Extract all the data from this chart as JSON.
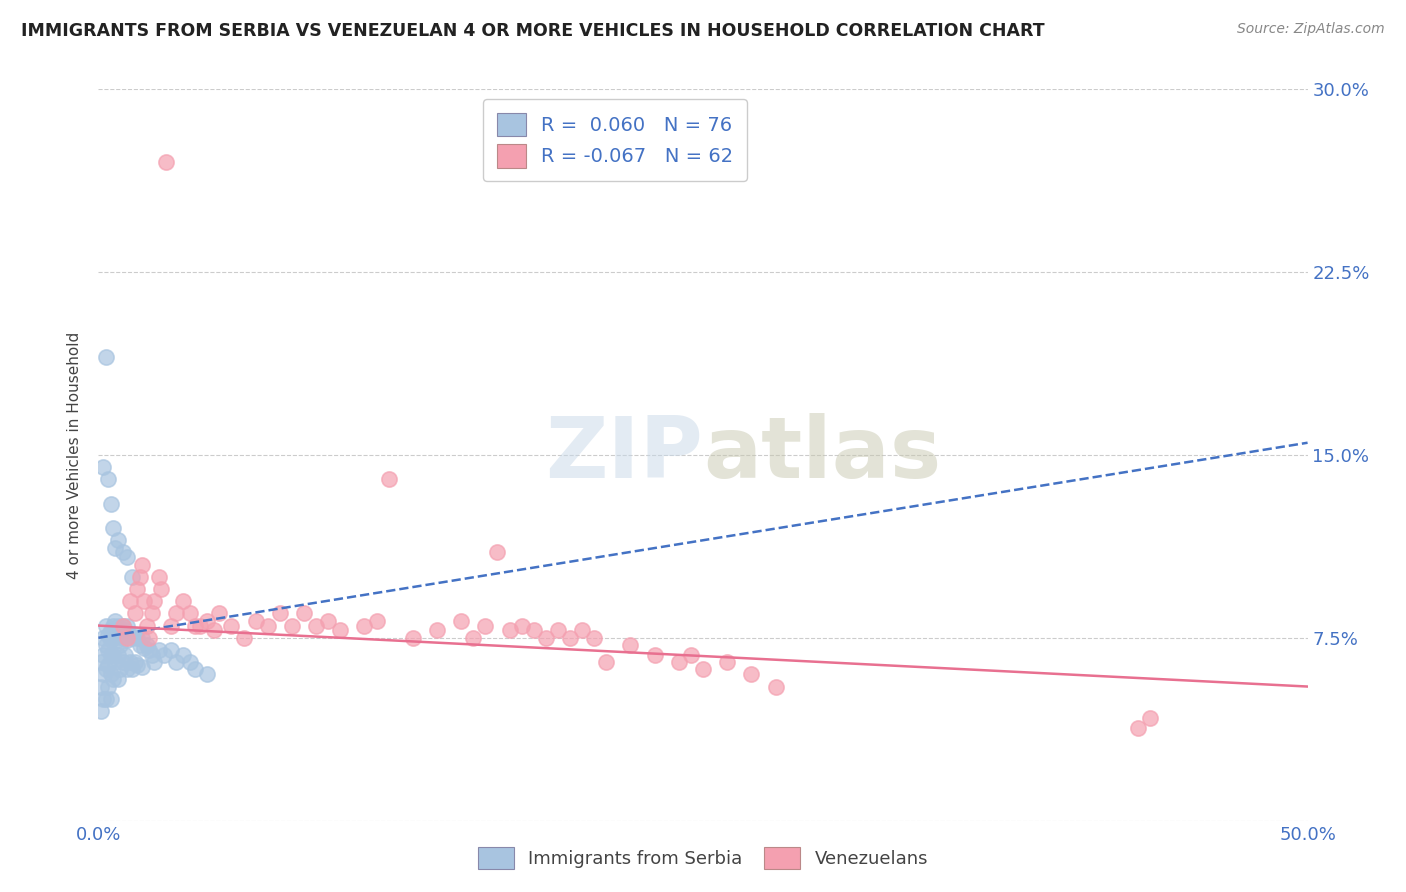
{
  "title": "IMMIGRANTS FROM SERBIA VS VENEZUELAN 4 OR MORE VEHICLES IN HOUSEHOLD CORRELATION CHART",
  "source": "Source: ZipAtlas.com",
  "xlabel_blue": "Immigrants from Serbia",
  "xlabel_pink": "Venezuelans",
  "ylabel": "4 or more Vehicles in Household",
  "xlim": [
    0.0,
    0.5
  ],
  "ylim": [
    0.0,
    0.3
  ],
  "R_blue": 0.06,
  "N_blue": 76,
  "R_pink": -0.067,
  "N_pink": 62,
  "blue_color": "#a8c4e0",
  "pink_color": "#f4a0b0",
  "blue_line_color": "#4472c4",
  "pink_line_color": "#e87090",
  "watermark": "ZIPatlas",
  "blue_trend_x": [
    0.0,
    0.5
  ],
  "blue_trend_y": [
    0.075,
    0.155
  ],
  "pink_trend_x": [
    0.0,
    0.5
  ],
  "pink_trend_y": [
    0.08,
    0.055
  ],
  "blue_scatter_x": [
    0.001,
    0.001,
    0.001,
    0.002,
    0.002,
    0.002,
    0.002,
    0.003,
    0.003,
    0.003,
    0.003,
    0.004,
    0.004,
    0.004,
    0.004,
    0.005,
    0.005,
    0.005,
    0.005,
    0.005,
    0.006,
    0.006,
    0.006,
    0.006,
    0.007,
    0.007,
    0.007,
    0.008,
    0.008,
    0.008,
    0.008,
    0.009,
    0.009,
    0.009,
    0.01,
    0.01,
    0.01,
    0.011,
    0.011,
    0.012,
    0.012,
    0.012,
    0.013,
    0.013,
    0.014,
    0.014,
    0.015,
    0.015,
    0.016,
    0.016,
    0.017,
    0.018,
    0.018,
    0.019,
    0.02,
    0.021,
    0.022,
    0.023,
    0.025,
    0.027,
    0.03,
    0.032,
    0.035,
    0.038,
    0.04,
    0.045,
    0.002,
    0.004,
    0.006,
    0.008,
    0.01,
    0.012,
    0.014,
    0.003,
    0.005,
    0.007
  ],
  "blue_scatter_y": [
    0.065,
    0.055,
    0.045,
    0.075,
    0.068,
    0.06,
    0.05,
    0.08,
    0.072,
    0.062,
    0.05,
    0.076,
    0.07,
    0.064,
    0.055,
    0.078,
    0.074,
    0.068,
    0.06,
    0.05,
    0.08,
    0.075,
    0.068,
    0.058,
    0.082,
    0.076,
    0.065,
    0.08,
    0.074,
    0.068,
    0.058,
    0.078,
    0.072,
    0.062,
    0.08,
    0.075,
    0.065,
    0.078,
    0.068,
    0.08,
    0.074,
    0.062,
    0.076,
    0.065,
    0.075,
    0.062,
    0.076,
    0.065,
    0.075,
    0.064,
    0.072,
    0.075,
    0.063,
    0.071,
    0.072,
    0.07,
    0.068,
    0.065,
    0.07,
    0.068,
    0.07,
    0.065,
    0.068,
    0.065,
    0.062,
    0.06,
    0.145,
    0.14,
    0.12,
    0.115,
    0.11,
    0.108,
    0.1,
    0.19,
    0.13,
    0.112
  ],
  "pink_scatter_x": [
    0.01,
    0.012,
    0.013,
    0.015,
    0.016,
    0.017,
    0.018,
    0.019,
    0.02,
    0.021,
    0.022,
    0.023,
    0.025,
    0.026,
    0.028,
    0.03,
    0.032,
    0.035,
    0.038,
    0.04,
    0.042,
    0.045,
    0.048,
    0.05,
    0.055,
    0.06,
    0.065,
    0.07,
    0.075,
    0.08,
    0.085,
    0.09,
    0.095,
    0.1,
    0.11,
    0.115,
    0.12,
    0.13,
    0.14,
    0.15,
    0.155,
    0.16,
    0.165,
    0.17,
    0.175,
    0.18,
    0.185,
    0.19,
    0.195,
    0.2,
    0.205,
    0.21,
    0.22,
    0.23,
    0.24,
    0.245,
    0.25,
    0.26,
    0.27,
    0.28,
    0.43,
    0.435
  ],
  "pink_scatter_y": [
    0.08,
    0.075,
    0.09,
    0.085,
    0.095,
    0.1,
    0.105,
    0.09,
    0.08,
    0.075,
    0.085,
    0.09,
    0.1,
    0.095,
    0.27,
    0.08,
    0.085,
    0.09,
    0.085,
    0.08,
    0.08,
    0.082,
    0.078,
    0.085,
    0.08,
    0.075,
    0.082,
    0.08,
    0.085,
    0.08,
    0.085,
    0.08,
    0.082,
    0.078,
    0.08,
    0.082,
    0.14,
    0.075,
    0.078,
    0.082,
    0.075,
    0.08,
    0.11,
    0.078,
    0.08,
    0.078,
    0.075,
    0.078,
    0.075,
    0.078,
    0.075,
    0.065,
    0.072,
    0.068,
    0.065,
    0.068,
    0.062,
    0.065,
    0.06,
    0.055,
    0.038,
    0.042
  ]
}
